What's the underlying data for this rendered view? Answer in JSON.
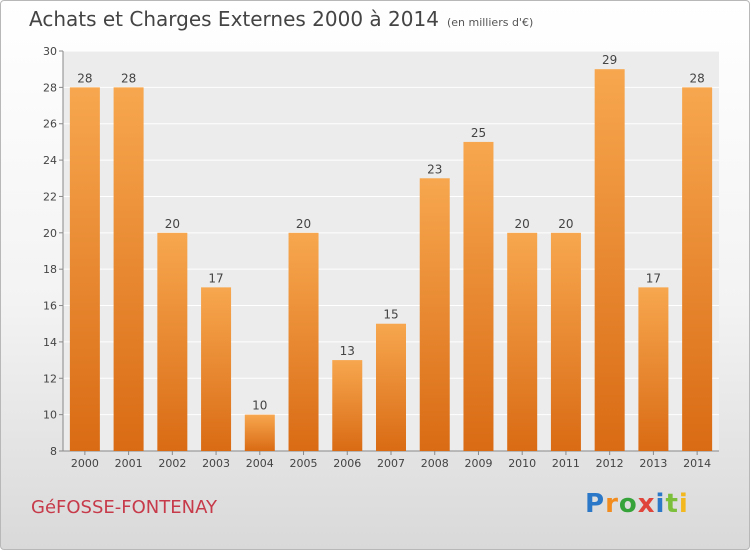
{
  "header": {
    "title": "Achats et Charges Externes 2000 à 2014",
    "subtitle": "(en milliers d'€)"
  },
  "footer": {
    "commune": "GéFOSSE-FONTENAY",
    "logo": {
      "p": "P",
      "r": "r",
      "o": "o",
      "x": "x",
      "i1": "i",
      "t": "t",
      "i2": "i"
    }
  },
  "colors": {
    "bar_light": "#F7A74F",
    "bar_dark": "#D96B14",
    "text": "#444444"
  },
  "chart_data": {
    "type": "bar",
    "categories": [
      "2000",
      "2001",
      "2002",
      "2003",
      "2004",
      "2005",
      "2006",
      "2007",
      "2008",
      "2009",
      "2010",
      "2011",
      "2012",
      "2013",
      "2014"
    ],
    "values": [
      28,
      28,
      20,
      17,
      10,
      20,
      13,
      15,
      23,
      25,
      20,
      20,
      29,
      17,
      28
    ],
    "ylim": [
      8,
      30
    ],
    "yticks": [
      8,
      10,
      12,
      14,
      16,
      18,
      20,
      22,
      24,
      26,
      28,
      30
    ],
    "grid": true,
    "legend": "none"
  }
}
